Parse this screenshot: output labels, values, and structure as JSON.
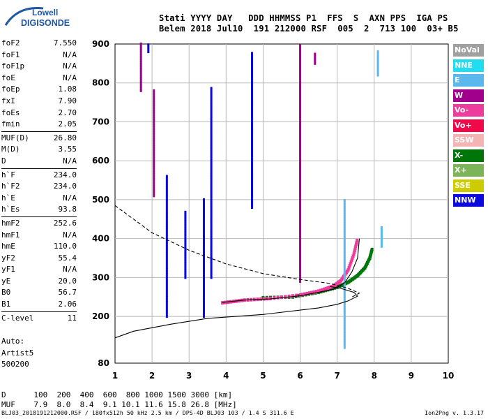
{
  "brand": {
    "line1": "Lowell",
    "line2": "DIGISONDE",
    "color": "#1f57a4"
  },
  "header": {
    "labels": "Stati YYYY DAY   DDD HHMMSS P1  FFS  S  AXN PPS  IGA PS",
    "values": "Belem 2018 Jul10  191 212000 RSF  005  2  713 100  03+ B5"
  },
  "params": [
    [
      {
        "label": "foF2",
        "value": "7.550"
      },
      {
        "label": "foF1",
        "value": "N/A"
      },
      {
        "label": "foF1p",
        "value": "N/A"
      },
      {
        "label": "foE",
        "value": "N/A"
      },
      {
        "label": "foEp",
        "value": "1.08"
      },
      {
        "label": "fxI",
        "value": "7.90"
      },
      {
        "label": "foEs",
        "value": "2.70"
      },
      {
        "label": "fmin",
        "value": "2.05"
      }
    ],
    [
      {
        "label": "MUF(D)",
        "value": "26.80"
      },
      {
        "label": "M(D)",
        "value": "3.55"
      },
      {
        "label": "D",
        "value": "N/A"
      }
    ],
    [
      {
        "label": "h`F",
        "value": "234.0"
      },
      {
        "label": "h`F2",
        "value": "234.0"
      },
      {
        "label": "h`E",
        "value": "N/A"
      },
      {
        "label": "h`Es",
        "value": "93.8"
      }
    ],
    [
      {
        "label": "hmF2",
        "value": "252.6"
      },
      {
        "label": "hmF1",
        "value": "N/A"
      },
      {
        "label": "hmE",
        "value": "110.0"
      },
      {
        "label": "yF2",
        "value": "55.4"
      },
      {
        "label": "yF1",
        "value": "N/A"
      },
      {
        "label": "yE",
        "value": "20.0"
      },
      {
        "label": "B0",
        "value": "56.7"
      },
      {
        "label": "B1",
        "value": "2.06"
      }
    ],
    [
      {
        "label": "C-level",
        "value": "11"
      }
    ]
  ],
  "auto": {
    "line1": "Auto:",
    "line2": "Artist5",
    "line3": "500200"
  },
  "legend": [
    {
      "label": "NoVal",
      "color": "#a0a0a0"
    },
    {
      "label": "NNE",
      "color": "#22dcf0"
    },
    {
      "label": "E",
      "color": "#5ab8ec"
    },
    {
      "label": "W",
      "color": "#a0008c"
    },
    {
      "label": "Vo-",
      "color": "#ee3c9c"
    },
    {
      "label": "Vo+",
      "color": "#f00848"
    },
    {
      "label": "SSW",
      "color": "#f4b4b4"
    },
    {
      "label": "X-",
      "color": "#00760a"
    },
    {
      "label": "X+",
      "color": "#7cb45a"
    },
    {
      "label": "SSE",
      "color": "#cccc00"
    },
    {
      "label": "NNW",
      "color": "#0a0adc"
    }
  ],
  "bottom": {
    "d_row": "D      100  200  400  600  800 1000 1500 3000 [km]",
    "muf_row": "MUF    7.9  8.0  8.4  9.1 10.1 11.6 15.8 26.8 [MHz]"
  },
  "footer": {
    "left": "BLJ03_2018191212000.RSF / 180fx512h 50 kHz 2.5 km / DPS-4D BLJ03 103 / 1.4 S 311.6 E",
    "right": "Ion2Png v. 1.3.17"
  },
  "chart_data": {
    "type": "scatter",
    "xlim": [
      1,
      10
    ],
    "ylim": [
      80,
      900
    ],
    "x_ticks": [
      1,
      2,
      3,
      4,
      5,
      6,
      7,
      8,
      9,
      10
    ],
    "y_ticks": [
      80,
      200,
      300,
      400,
      500,
      600,
      700,
      800,
      900
    ],
    "grid": true,
    "series": [
      {
        "name": "X-",
        "color": "#00760a",
        "style": "trace",
        "points": [
          [
            5.0,
            248
          ],
          [
            5.8,
            250
          ],
          [
            6.5,
            262
          ],
          [
            7.0,
            275
          ],
          [
            7.3,
            288
          ],
          [
            7.55,
            305
          ],
          [
            7.75,
            325
          ],
          [
            7.88,
            350
          ],
          [
            7.95,
            375
          ]
        ]
      },
      {
        "name": "Vo-",
        "color": "#ee3c9c",
        "style": "trace",
        "points": [
          [
            3.9,
            235
          ],
          [
            4.5,
            242
          ],
          [
            5.2,
            246
          ],
          [
            6.0,
            255
          ],
          [
            6.5,
            265
          ],
          [
            6.9,
            278
          ],
          [
            7.1,
            292
          ],
          [
            7.3,
            320
          ],
          [
            7.45,
            360
          ],
          [
            7.55,
            400
          ]
        ]
      },
      {
        "name": "NNW",
        "color": "#0a0adc",
        "style": "vertical",
        "points": [
          [
            1.9,
            900
          ],
          [
            1.9,
            880
          ],
          [
            2.4,
            560
          ],
          [
            2.4,
            200
          ],
          [
            2.9,
            470
          ],
          [
            2.9,
            300
          ],
          [
            3.6,
            790
          ],
          [
            3.6,
            300
          ],
          [
            3.4,
            500
          ],
          [
            3.4,
            200
          ],
          [
            4.7,
            880
          ],
          [
            4.7,
            480
          ]
        ]
      },
      {
        "name": "W",
        "color": "#a0008c",
        "style": "vertical",
        "points": [
          [
            1.7,
            900
          ],
          [
            1.7,
            780
          ],
          [
            2.05,
            780
          ],
          [
            2.05,
            510
          ],
          [
            6.0,
            900
          ],
          [
            6.0,
            290
          ],
          [
            6.4,
            875
          ],
          [
            6.4,
            850
          ]
        ]
      },
      {
        "name": "E",
        "color": "#5ab8ec",
        "style": "vertical",
        "points": [
          [
            7.2,
            500
          ],
          [
            7.2,
            120
          ],
          [
            8.1,
            880
          ],
          [
            8.1,
            820
          ],
          [
            8.2,
            430
          ],
          [
            8.2,
            380
          ]
        ]
      }
    ],
    "curves": [
      {
        "name": "profile",
        "style": "solid",
        "points": [
          [
            1.0,
            145
          ],
          [
            1.5,
            162
          ],
          [
            2.5,
            180
          ],
          [
            3.5,
            195
          ],
          [
            5.0,
            205
          ],
          [
            6.5,
            222
          ],
          [
            7.0,
            231
          ],
          [
            7.3,
            240
          ],
          [
            7.55,
            252
          ],
          [
            7.45,
            262
          ],
          [
            7.1,
            272
          ],
          [
            6.8,
            277
          ]
        ]
      },
      {
        "name": "model",
        "style": "dashed",
        "points": [
          [
            1.0,
            485
          ],
          [
            2.0,
            415
          ],
          [
            3.0,
            370
          ],
          [
            4.0,
            335
          ],
          [
            5.0,
            310
          ],
          [
            6.0,
            295
          ],
          [
            6.8,
            285
          ],
          [
            7.3,
            272
          ],
          [
            7.6,
            260
          ],
          [
            7.4,
            250
          ]
        ]
      },
      {
        "name": "virtual",
        "style": "solid",
        "points": [
          [
            3.9,
            236
          ],
          [
            4.5,
            242
          ],
          [
            5.2,
            245
          ],
          [
            6.0,
            253
          ],
          [
            6.5,
            262
          ],
          [
            6.9,
            270
          ],
          [
            7.2,
            286
          ],
          [
            7.4,
            315
          ],
          [
            7.55,
            350
          ],
          [
            7.6,
            400
          ]
        ]
      }
    ]
  }
}
